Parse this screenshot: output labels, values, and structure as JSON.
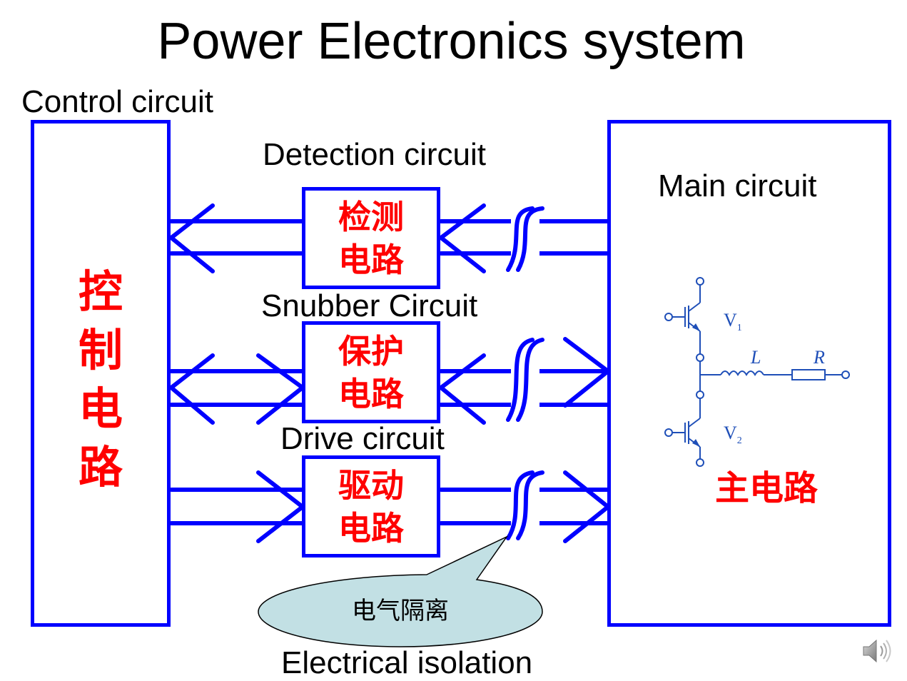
{
  "title": "Power Electronics system",
  "control": {
    "label": "Control circuit",
    "cn": [
      "控",
      "制",
      "电",
      "路"
    ]
  },
  "detection": {
    "label": "Detection circuit",
    "cn": [
      "检测",
      "电路"
    ]
  },
  "snubber": {
    "label": "Snubber Circuit",
    "cn": [
      "保护",
      "电路"
    ]
  },
  "drive": {
    "label": "Drive circuit",
    "cn": [
      "驱动",
      "电路"
    ]
  },
  "main": {
    "label": "Main circuit",
    "cn": "主电路",
    "v1_letter": "V",
    "v1_sub": "1",
    "v2_letter": "V",
    "v2_sub": "2",
    "inductor": "L",
    "resistor": "R"
  },
  "isolation": {
    "cn": "电气隔离",
    "label": "Electrical isolation"
  },
  "colors": {
    "box_border": "#0000ff",
    "arrow": "#0000ff",
    "cn_text": "#ff0000",
    "bubble_fill": "#c2e0e4",
    "schematic": "#1f4fb8"
  },
  "icons": {
    "speaker": "speaker-icon"
  }
}
